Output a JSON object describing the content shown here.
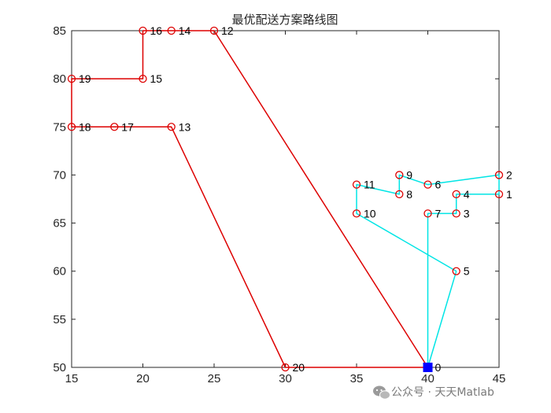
{
  "chart_data": {
    "type": "line",
    "title": "最优配送方案路线图",
    "xlabel": "",
    "ylabel": "",
    "xlim": [
      15,
      45
    ],
    "ylim": [
      50,
      85
    ],
    "xticks": [
      15,
      20,
      25,
      30,
      35,
      40,
      45
    ],
    "yticks": [
      50,
      55,
      60,
      65,
      70,
      75,
      80,
      85
    ],
    "grid": false,
    "points": [
      {
        "id": "0",
        "x": 40,
        "y": 50
      },
      {
        "id": "1",
        "x": 45,
        "y": 68
      },
      {
        "id": "2",
        "x": 45,
        "y": 70
      },
      {
        "id": "3",
        "x": 42,
        "y": 66
      },
      {
        "id": "4",
        "x": 42,
        "y": 68
      },
      {
        "id": "5",
        "x": 42,
        "y": 60
      },
      {
        "id": "6",
        "x": 40,
        "y": 69
      },
      {
        "id": "7",
        "x": 40,
        "y": 66
      },
      {
        "id": "8",
        "x": 38,
        "y": 68
      },
      {
        "id": "9",
        "x": 38,
        "y": 70
      },
      {
        "id": "10",
        "x": 35,
        "y": 66
      },
      {
        "id": "11",
        "x": 35,
        "y": 69
      },
      {
        "id": "12",
        "x": 25,
        "y": 85
      },
      {
        "id": "13",
        "x": 22,
        "y": 75
      },
      {
        "id": "14",
        "x": 22,
        "y": 85
      },
      {
        "id": "15",
        "x": 20,
        "y": 80
      },
      {
        "id": "16",
        "x": 20,
        "y": 85
      },
      {
        "id": "17",
        "x": 18,
        "y": 75
      },
      {
        "id": "18",
        "x": 15,
        "y": 75
      },
      {
        "id": "19",
        "x": 15,
        "y": 80
      },
      {
        "id": "20",
        "x": 30,
        "y": 50
      }
    ],
    "series": [
      {
        "color": "#00e5e5",
        "route": [
          "0",
          "7",
          "3",
          "4",
          "1",
          "2",
          "6",
          "9",
          "8",
          "11",
          "10",
          "5",
          "0"
        ]
      },
      {
        "color": "#dd0000",
        "route": [
          "0",
          "12",
          "14",
          "16",
          "15",
          "19",
          "18",
          "17",
          "13",
          "20",
          "0"
        ]
      }
    ],
    "depot": {
      "id": "0",
      "color": "#0000ff"
    },
    "marker_color": "#dd0000"
  },
  "watermark": {
    "text": "公众号 · 天天Matlab",
    "icon": "wechat-icon"
  }
}
